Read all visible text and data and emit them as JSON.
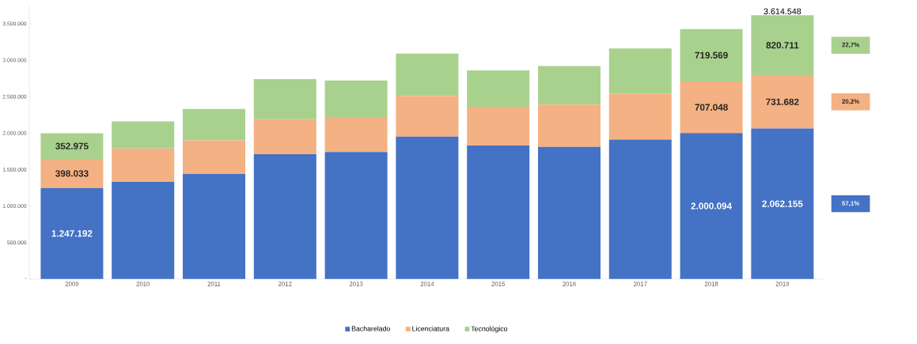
{
  "chart_data": {
    "type": "bar",
    "stacked": true,
    "categories": [
      "2009",
      "2010",
      "2011",
      "2012",
      "2013",
      "2014",
      "2015",
      "2016",
      "2017",
      "2018",
      "2019"
    ],
    "series": [
      {
        "name": "Bacharelado",
        "color": "#4472c4",
        "values": [
          1247192,
          1330000,
          1440000,
          1710000,
          1740000,
          1950000,
          1830000,
          1810000,
          1910000,
          2000094,
          2062155
        ],
        "value_labels": [
          "1.247.192",
          null,
          null,
          null,
          null,
          null,
          null,
          null,
          null,
          "2.000.094",
          "2.062.155"
        ]
      },
      {
        "name": "Licenciatura",
        "color": "#f4b183",
        "values": [
          398033,
          460000,
          460000,
          480000,
          470000,
          560000,
          530000,
          580000,
          630000,
          707048,
          731682
        ],
        "value_labels": [
          "398.033",
          null,
          null,
          null,
          null,
          null,
          null,
          null,
          null,
          "707.048",
          "731.682"
        ]
      },
      {
        "name": "Tecnológico",
        "color": "#a9d18e",
        "values": [
          352975,
          370000,
          430000,
          550000,
          510000,
          580000,
          500000,
          530000,
          620000,
          719569,
          820711
        ],
        "value_labels": [
          "352.975",
          null,
          null,
          null,
          null,
          null,
          null,
          null,
          null,
          "719.569",
          "820.711"
        ]
      }
    ],
    "totals": [
      null,
      null,
      null,
      null,
      null,
      null,
      null,
      null,
      null,
      null,
      "3.614.548"
    ],
    "annotations": [
      "22,7%",
      "20,2%",
      "57,1%"
    ],
    "ylim": [
      0,
      3750000
    ],
    "yticks": [
      {
        "value": 0,
        "label": "-"
      },
      {
        "value": 500000,
        "label": "500.000"
      },
      {
        "value": 1000000,
        "label": "1.000.000"
      },
      {
        "value": 1500000,
        "label": "1.500.000"
      },
      {
        "value": 2000000,
        "label": "2.000.000"
      },
      {
        "value": 2500000,
        "label": "2.500.000"
      },
      {
        "value": 3000000,
        "label": "3.000.000"
      },
      {
        "value": 3500000,
        "label": "3.500.000"
      }
    ],
    "grid": false,
    "legend": "bottom"
  }
}
